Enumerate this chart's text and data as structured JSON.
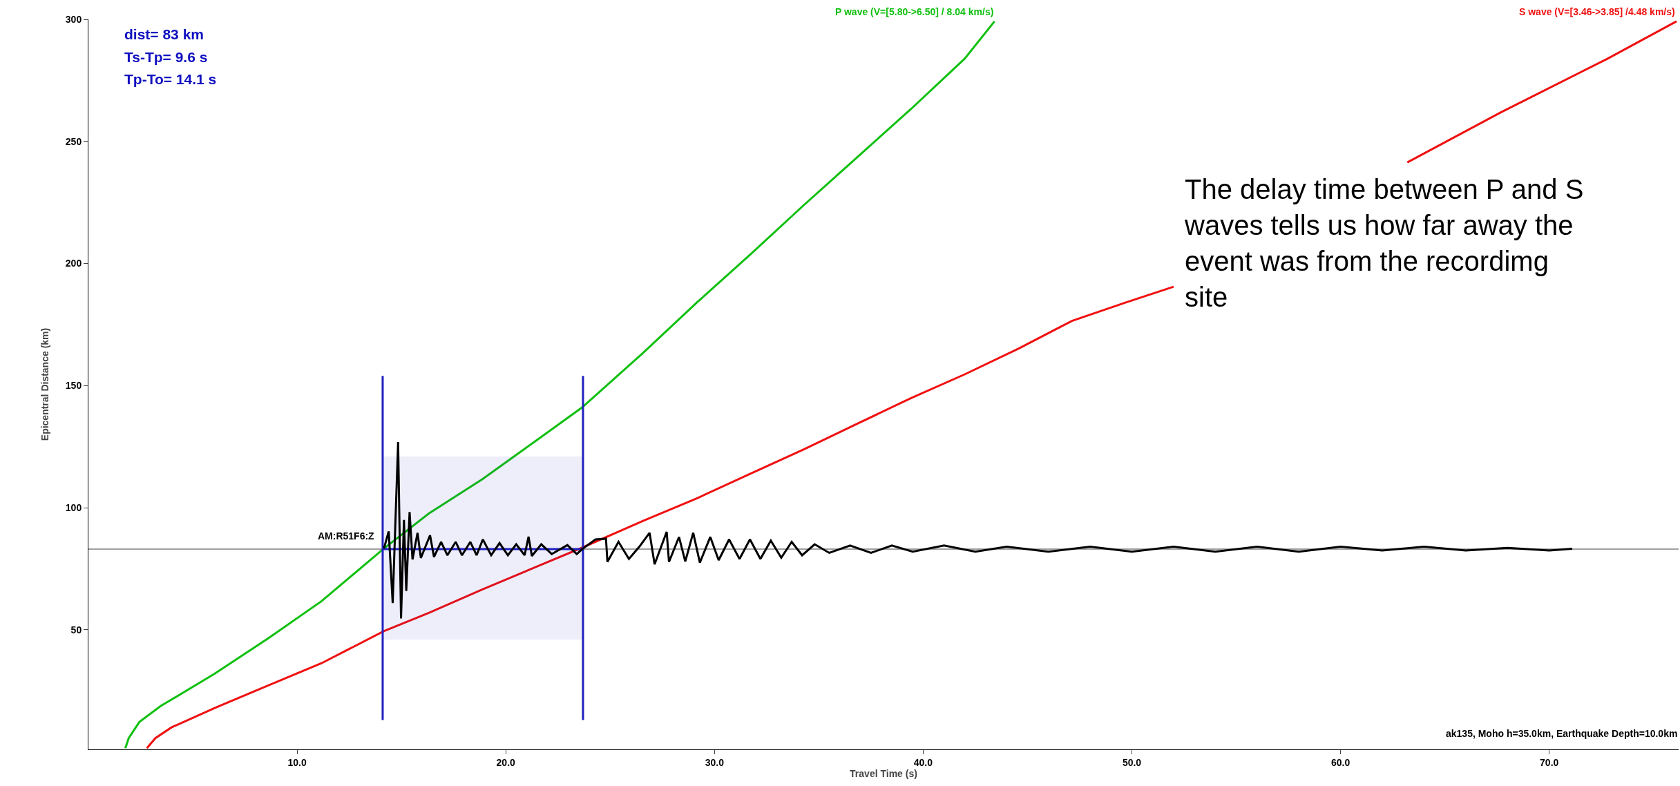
{
  "chart_data": {
    "type": "line",
    "xlabel": "Travel Time (s)",
    "ylabel": "Epicentral Distance (km)",
    "xlim": [
      0,
      76.2
    ],
    "ylim": [
      1,
      300
    ],
    "xticks": [
      {
        "value": 10,
        "label": "10.0"
      },
      {
        "value": 20,
        "label": "20.0"
      },
      {
        "value": 30,
        "label": "30.0"
      },
      {
        "value": 40,
        "label": "40.0"
      },
      {
        "value": 50,
        "label": "50.0"
      },
      {
        "value": 60,
        "label": "60.0"
      },
      {
        "value": 70,
        "label": "70.0"
      }
    ],
    "yticks": [
      50,
      100,
      150,
      200,
      250,
      300
    ],
    "grid": false,
    "legend": false,
    "marker": "none",
    "line_style": "solid",
    "ref_lines": [
      {
        "axis": "y",
        "value": 83,
        "color": "#808080"
      }
    ],
    "series": [
      {
        "name": "P wave (V=[5.80->6.50] / 8.04 km/s)",
        "color": "#10c010",
        "x": [
          1.77,
          1.93,
          2.44,
          3.47,
          6.03,
          8.6,
          11.17,
          14.15,
          16.31,
          18.88,
          21.44,
          23.65,
          26.58,
          29.15,
          31.72,
          34.28,
          36.85,
          39.42,
          41.99,
          43.42
        ],
        "values": [
          1.5,
          5.6,
          12.2,
          18.8,
          31.9,
          46.4,
          61.7,
          83.2,
          97.6,
          111.7,
          127.4,
          141,
          163.4,
          184,
          203.7,
          223.9,
          243.6,
          263.3,
          283.9,
          299.2
        ]
      },
      {
        "name": "S wave (V=[3.46->3.85] /4.48 km/s)",
        "color": "#f01010",
        "x": [
          2.8,
          3.21,
          3.98,
          6.03,
          8.6,
          11.17,
          14.15,
          16.31,
          18.88,
          21.44,
          23.65,
          26.58,
          29.15,
          31.72,
          34.28,
          36.85,
          39.42,
          41.99,
          44.56,
          47.13,
          49.69,
          52,
          57,
          63.2,
          67.7,
          72.8,
          76.1
        ],
        "values": [
          1.5,
          5.6,
          10,
          17.9,
          27.1,
          36.3,
          49.4,
          56.9,
          66.5,
          75.7,
          83.6,
          94.6,
          103.8,
          113.9,
          123.9,
          134.4,
          144.9,
          154.6,
          165.1,
          176.5,
          184,
          190.5,
          null,
          241.4,
          262,
          283.9,
          299.2
        ]
      },
      {
        "color": "#2020c0",
        "x": [
          14.1,
          23.7
        ],
        "values": [
          83,
          83
        ],
        "lower": [
          46,
          46
        ],
        "upper": [
          121,
          121
        ]
      },
      {
        "color": "#2020c0",
        "x": [
          14.1,
          14.1
        ],
        "values": [
          13,
          154
        ]
      },
      {
        "color": "#2020c0",
        "x": [
          23.7,
          23.7
        ],
        "values": [
          13,
          154
        ]
      },
      {
        "name": "AM:R51F6:Z",
        "color": "#000000",
        "x": [
          14.16,
          14.39,
          14.58,
          14.84,
          14.98,
          15.12,
          15.23,
          15.39,
          15.53,
          15.77,
          15.93,
          16.37,
          16.56,
          16.9,
          17.2,
          17.6,
          17.9,
          18.3,
          18.6,
          18.9,
          19.3,
          19.7,
          20.1,
          20.5,
          20.9,
          21.09,
          21.25,
          21.7,
          22.2,
          22.95,
          23.4,
          23.7,
          24.3,
          24.8,
          24.87,
          25.4,
          25.9,
          26.4,
          26.89,
          27.13,
          27.71,
          27.82,
          28.3,
          28.6,
          28.98,
          29.3,
          29.8,
          30.2,
          30.7,
          31.2,
          31.7,
          32.2,
          32.7,
          33.2,
          33.7,
          34.2,
          34.8,
          35.5,
          36.5,
          37.5,
          38.5,
          39.5,
          41,
          42.5,
          44,
          46,
          48,
          50,
          52,
          54,
          56,
          58,
          60,
          62,
          64,
          66,
          68,
          70,
          71.1
        ],
        "values": [
          83.3,
          90.3,
          60.9,
          126.9,
          54.6,
          95,
          65.9,
          98.2,
          78.8,
          89.7,
          79.4,
          88.7,
          79.8,
          86,
          80.5,
          86,
          80.5,
          86,
          80.5,
          87,
          80.5,
          85.5,
          80.5,
          85,
          80.5,
          88.1,
          80.2,
          85,
          81,
          84.7,
          81,
          83.3,
          87,
          87.3,
          77.8,
          86,
          79,
          84,
          89.7,
          76.8,
          90.1,
          77.8,
          88,
          78,
          89.7,
          77.5,
          88,
          78.5,
          87,
          79,
          87,
          79,
          86.5,
          79.5,
          86,
          80.5,
          85,
          81.5,
          84.5,
          81.5,
          84.5,
          82,
          84.5,
          82,
          84,
          82,
          84,
          82,
          84,
          82,
          84,
          82,
          84,
          82.5,
          84,
          82.5,
          83.5,
          82.5,
          83.2
        ]
      }
    ],
    "annotations": [
      "dist= 83 km",
      "Ts-Tp= 9.6 s",
      "Tp-To= 14.1 s",
      "The delay time between P and S waves tells us how far away the event was from the recordimg site",
      "ak135, Moho h=35.0km, Earthquake Depth=10.0km"
    ]
  }
}
